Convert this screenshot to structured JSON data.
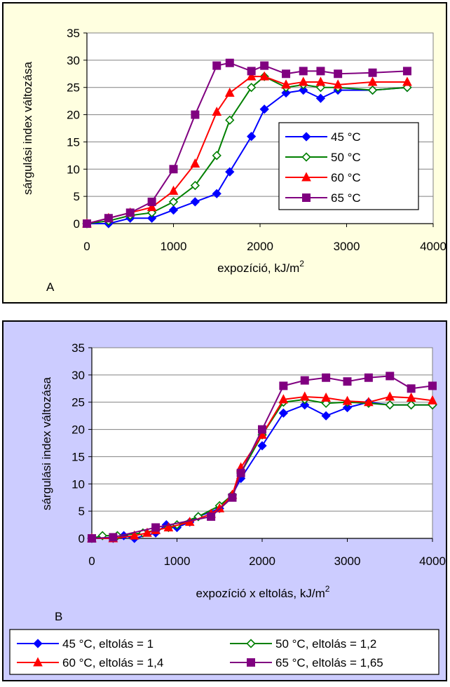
{
  "chart_data": [
    {
      "type": "line",
      "panel_label": "A",
      "xlabel": "expozíció, kJ/m",
      "xlabel_sup": "2",
      "ylabel": "sárgulási index változása",
      "xlim": [
        0,
        4000
      ],
      "ylim": [
        0,
        35
      ],
      "xticks": [
        0,
        1000,
        2000,
        3000,
        4000
      ],
      "yticks": [
        0,
        5,
        10,
        15,
        20,
        25,
        30,
        35
      ],
      "grid": "horizontal",
      "legend_position": "inside-right",
      "background_color": "#ffffe0",
      "plot_background_color": "#ffffff",
      "series": [
        {
          "name": "45 °C",
          "color": "#0000ff",
          "marker": "diamond-filled",
          "x": [
            0,
            250,
            500,
            750,
            1000,
            1250,
            1500,
            1650,
            1900,
            2050,
            2300,
            2500,
            2700,
            2900,
            3300,
            3700
          ],
          "y": [
            0,
            0,
            1,
            1,
            2.5,
            4,
            5.5,
            9.5,
            16,
            21,
            24,
            24.5,
            23,
            24.5,
            24.5,
            25
          ]
        },
        {
          "name": "50 °C",
          "color": "#008000",
          "marker": "diamond-open",
          "x": [
            0,
            250,
            500,
            750,
            1000,
            1250,
            1500,
            1650,
            1900,
            2050,
            2300,
            2500,
            2700,
            2900,
            3300,
            3700
          ],
          "y": [
            0,
            0.5,
            1.5,
            2,
            4,
            7,
            12.5,
            19,
            25,
            27,
            25,
            25.5,
            25,
            25,
            24.5,
            25
          ]
        },
        {
          "name": "60 °C",
          "color": "#ff0000",
          "marker": "triangle",
          "x": [
            0,
            250,
            500,
            750,
            1000,
            1250,
            1500,
            1650,
            1900,
            2050,
            2300,
            2500,
            2700,
            2900,
            3300,
            3700
          ],
          "y": [
            0,
            1,
            2,
            3,
            6,
            11,
            20.5,
            24,
            27,
            27,
            25.5,
            26,
            26,
            25.5,
            26,
            26
          ]
        },
        {
          "name": "65 °C",
          "color": "#800080",
          "marker": "square",
          "x": [
            0,
            250,
            500,
            750,
            1000,
            1250,
            1500,
            1650,
            1900,
            2050,
            2300,
            2500,
            2700,
            2900,
            3300,
            3700
          ],
          "y": [
            0,
            1,
            2,
            4,
            10,
            20,
            29,
            29.5,
            28,
            29,
            27.5,
            28,
            28,
            27.5,
            27.7,
            28
          ]
        }
      ]
    },
    {
      "type": "line",
      "panel_label": "B",
      "xlabel": "expozíció x eltolás, kJ/m",
      "xlabel_sup": "2",
      "ylabel": "sárgulási index változása",
      "xlim": [
        0,
        4000
      ],
      "ylim": [
        0,
        35
      ],
      "xticks": [
        0,
        1000,
        2000,
        3000,
        4000
      ],
      "yticks": [
        0,
        5,
        10,
        15,
        20,
        25,
        30,
        35
      ],
      "grid": "horizontal",
      "legend_position": "bottom",
      "background_color": "#ccccff",
      "plot_background_color": "#ffffff",
      "series": [
        {
          "name": "45 °C, eltolás = 1",
          "color": "#0000ff",
          "marker": "diamond-filled",
          "x": [
            0,
            250,
            375,
            500,
            750,
            875,
            1000,
            1150,
            1250,
            1500,
            1650,
            1750,
            2000,
            2250,
            2500,
            2750,
            3000,
            3250,
            3500,
            3750,
            4000
          ],
          "y": [
            0,
            0,
            0.5,
            0,
            1,
            2.5,
            2,
            3,
            4,
            5.5,
            8,
            11,
            17,
            23,
            24.5,
            22.5,
            24,
            25,
            24.5,
            24.5,
            24.5
          ]
        },
        {
          "name": "50 °C, eltolás = 1,2",
          "color": "#008000",
          "marker": "diamond-open",
          "x": [
            0,
            125,
            300,
            600,
            900,
            1000,
            1250,
            1500,
            1650,
            1750,
            2000,
            2250,
            2500,
            2750,
            3000,
            3250,
            3500,
            3750,
            4000
          ],
          "y": [
            0,
            0.5,
            0.5,
            1,
            2,
            2.5,
            4,
            6,
            8,
            12,
            19,
            25,
            25.5,
            24.8,
            25,
            24.8,
            24.5,
            24.5,
            24.5
          ]
        },
        {
          "name": "60 °C, eltolás = 1,4",
          "color": "#ff0000",
          "marker": "triangle",
          "x": [
            0,
            250,
            500,
            650,
            750,
            900,
            1150,
            1400,
            1500,
            1650,
            1750,
            2000,
            2250,
            2500,
            2750,
            3000,
            3250,
            3500,
            3750,
            4000
          ],
          "y": [
            0,
            0,
            0.5,
            1,
            1.5,
            2,
            3,
            4.5,
            5.5,
            8,
            13,
            19,
            25.5,
            26,
            25.8,
            25.2,
            25,
            26,
            25.8,
            25.3
          ]
        },
        {
          "name": "65 °C, eltolás = 1,65",
          "color": "#800080",
          "marker": "square",
          "x": [
            0,
            250,
            750,
            1400,
            1650,
            1750,
            2000,
            2250,
            2500,
            2750,
            3000,
            3250,
            3500,
            3750,
            4000
          ],
          "y": [
            0,
            0.2,
            2,
            4,
            7.5,
            12,
            20,
            28,
            29,
            29.5,
            28.8,
            29.5,
            29.8,
            27.5,
            28
          ]
        }
      ]
    }
  ]
}
